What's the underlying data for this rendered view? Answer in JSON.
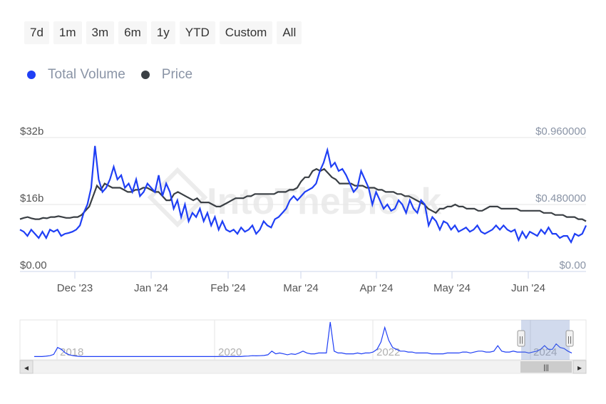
{
  "range_selector": {
    "buttons": [
      "7d",
      "1m",
      "3m",
      "6m",
      "1y",
      "YTD",
      "Custom",
      "All"
    ]
  },
  "legend": [
    {
      "label": "Total Volume",
      "color": "#1f3ff5"
    },
    {
      "label": "Price",
      "color": "#3a3f44"
    }
  ],
  "watermark": "IntoTheBlock",
  "chart_data": {
    "type": "line",
    "x_tick_labels": [
      "Dec '23",
      "Jan '24",
      "Feb '24",
      "Mar '24",
      "Apr '24",
      "May '24",
      "Jun '24"
    ],
    "y_left": {
      "tick_labels": [
        "$0.00",
        "$16b",
        "$32b"
      ],
      "ylim": [
        0,
        32
      ]
    },
    "y_right": {
      "tick_labels": [
        "$0.00",
        "$0.480000",
        "$0.960000"
      ],
      "ylim": [
        0,
        0.96
      ]
    },
    "grid": true,
    "legend_position": "top-left",
    "series": [
      {
        "name": "Total Volume",
        "axis": "left",
        "color": "#1f3ff5",
        "values": [
          10,
          9.5,
          8.5,
          10,
          9,
          8,
          9.5,
          8,
          10,
          9.5,
          10,
          8.5,
          9,
          9.2,
          9.5,
          10,
          11,
          14,
          16,
          20,
          30,
          22,
          19,
          20,
          22,
          25,
          22,
          23,
          20,
          21,
          19,
          22,
          18,
          19,
          21,
          20,
          19,
          23,
          18,
          21,
          19,
          15,
          17,
          13,
          16,
          12,
          14,
          13,
          15,
          12,
          14,
          11,
          13,
          10,
          12,
          10,
          9.5,
          10,
          9,
          10.5,
          9.5,
          10,
          11,
          9,
          10,
          12,
          11,
          10.5,
          12.5,
          13,
          14,
          15,
          17,
          18,
          17,
          18,
          19,
          19.5,
          20,
          21,
          24,
          26,
          29,
          25,
          26,
          24,
          24.5,
          23,
          21,
          19,
          20,
          24,
          22,
          20,
          16,
          19,
          17,
          15,
          16,
          14.5,
          15,
          17,
          16,
          14,
          17,
          15,
          14,
          17,
          16,
          11,
          13,
          12,
          10,
          12,
          11.5,
          10,
          11,
          9.5,
          10,
          10.5,
          9.5,
          10,
          11,
          9.5,
          9,
          9.5,
          10,
          11,
          10,
          11,
          10,
          9.5,
          10,
          7.5,
          9.5,
          8,
          9.5,
          9,
          8.5,
          10,
          9,
          10.5,
          9,
          9,
          8,
          8.5,
          8.5,
          7,
          9,
          8.5,
          9,
          11
        ]
      },
      {
        "name": "Price",
        "axis": "left",
        "color": "#3a3f44",
        "values": [
          12.5,
          12.8,
          13,
          12.7,
          12.5,
          12.5,
          12.8,
          12.7,
          13,
          13,
          13.2,
          13,
          12.8,
          12.8,
          13,
          13,
          13.5,
          14.5,
          15.5,
          18,
          20.5,
          19.5,
          21,
          20.5,
          20,
          20,
          20,
          19.5,
          19,
          19,
          19.5,
          19.5,
          20,
          20,
          19.5,
          19,
          19,
          18,
          17,
          17,
          18.5,
          19,
          18.5,
          18,
          17.5,
          17,
          17.5,
          16.5,
          16.5,
          16.5,
          16,
          15.5,
          15.5,
          16,
          16.5,
          17,
          17.5,
          17.5,
          17.5,
          18,
          18,
          18.5,
          18.5,
          18.5,
          18.5,
          18.5,
          18.5,
          19,
          19,
          19,
          19.5,
          19.5,
          20,
          21.5,
          22.5,
          22.5,
          24,
          24.5,
          24,
          24.5,
          23.5,
          22.5,
          22,
          21,
          21,
          21,
          21,
          20.5,
          20.5,
          20.5,
          20,
          20,
          20,
          19.5,
          19.5,
          19,
          19,
          19,
          18.5,
          18.5,
          18,
          18,
          17.5,
          17,
          16.5,
          16,
          15,
          14.5,
          14,
          15,
          15,
          15.5,
          15.5,
          16,
          15.5,
          15.5,
          15,
          15,
          15,
          14.5,
          14.5,
          15,
          15.5,
          15.5,
          15.5,
          15,
          15,
          15,
          15,
          15,
          14.5,
          14.5,
          14.5,
          14.5,
          14.5,
          14.5,
          14,
          14,
          14,
          13.5,
          13.5,
          13.5,
          13,
          13,
          13,
          12.5,
          12.5,
          12
        ]
      }
    ]
  },
  "navigator": {
    "year_labels": [
      "2018",
      "2020",
      "2022",
      "2024"
    ],
    "scroll_left": "◂",
    "scroll_right": "▸",
    "scroll_thumb": "|||",
    "handle_glyph": "||",
    "series": [
      1,
      1,
      1,
      1.2,
      1.5,
      2.2,
      6,
      5,
      3,
      2,
      1.5,
      1.2,
      1,
      1,
      1,
      1,
      1,
      1,
      1,
      1,
      1,
      1,
      1,
      1,
      1,
      1,
      1,
      1,
      1,
      1,
      1,
      1,
      1,
      1,
      1,
      1,
      1,
      1,
      1,
      1,
      1,
      1,
      1,
      1,
      1,
      1,
      1,
      1,
      1,
      1,
      1,
      1,
      1,
      1,
      1.2,
      1.3,
      1.5,
      1.4,
      1.5,
      1.6,
      2,
      4,
      2.5,
      3,
      2.5,
      2,
      2.5,
      2.2,
      3,
      4,
      3,
      2.5,
      2.5,
      3,
      3,
      3,
      20,
      4,
      3,
      3,
      2.5,
      2.5,
      2.5,
      3,
      2.5,
      3,
      3,
      3.5,
      5,
      9,
      17,
      10,
      6,
      5,
      4,
      4,
      3.5,
      3.5,
      3,
      3,
      3,
      3,
      2.5,
      2.5,
      2.5,
      2.5,
      3,
      3,
      3,
      3,
      3.5,
      3.5,
      3,
      3.5,
      4,
      4,
      3.5,
      3.5,
      4,
      7,
      4,
      3.5,
      3.5,
      4,
      3.5,
      3.5,
      3.5,
      3,
      3.5,
      4,
      5,
      7,
      5,
      5,
      8,
      6,
      5.5,
      4,
      3
    ]
  }
}
